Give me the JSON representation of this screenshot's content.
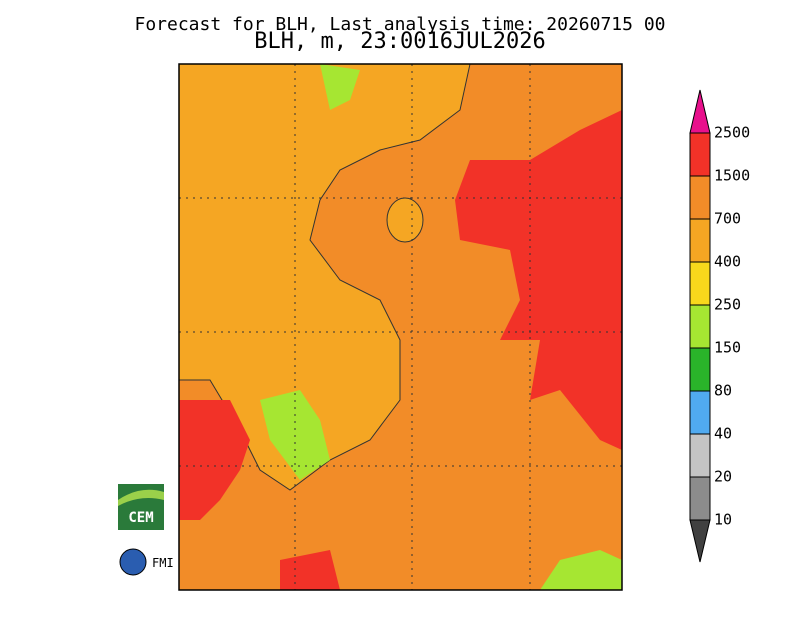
{
  "header": {
    "title": "Forecast for BLH, Last analysis time: 20260715 00",
    "subtitle": "BLH, m, 23:0016JUL2026"
  },
  "colorbar": {
    "levels": [
      2500,
      1500,
      700,
      400,
      250,
      150,
      80,
      40,
      20,
      10
    ],
    "colors": [
      "#e8108c",
      "#f23228",
      "#f28c28",
      "#f5a623",
      "#f8d81c",
      "#a6e632",
      "#2ab42a",
      "#50aaf0",
      "#c4c4c4",
      "#8c8c8c",
      "#404040"
    ]
  },
  "logos": {
    "cem": "CEM",
    "fmi": "FMI"
  }
}
